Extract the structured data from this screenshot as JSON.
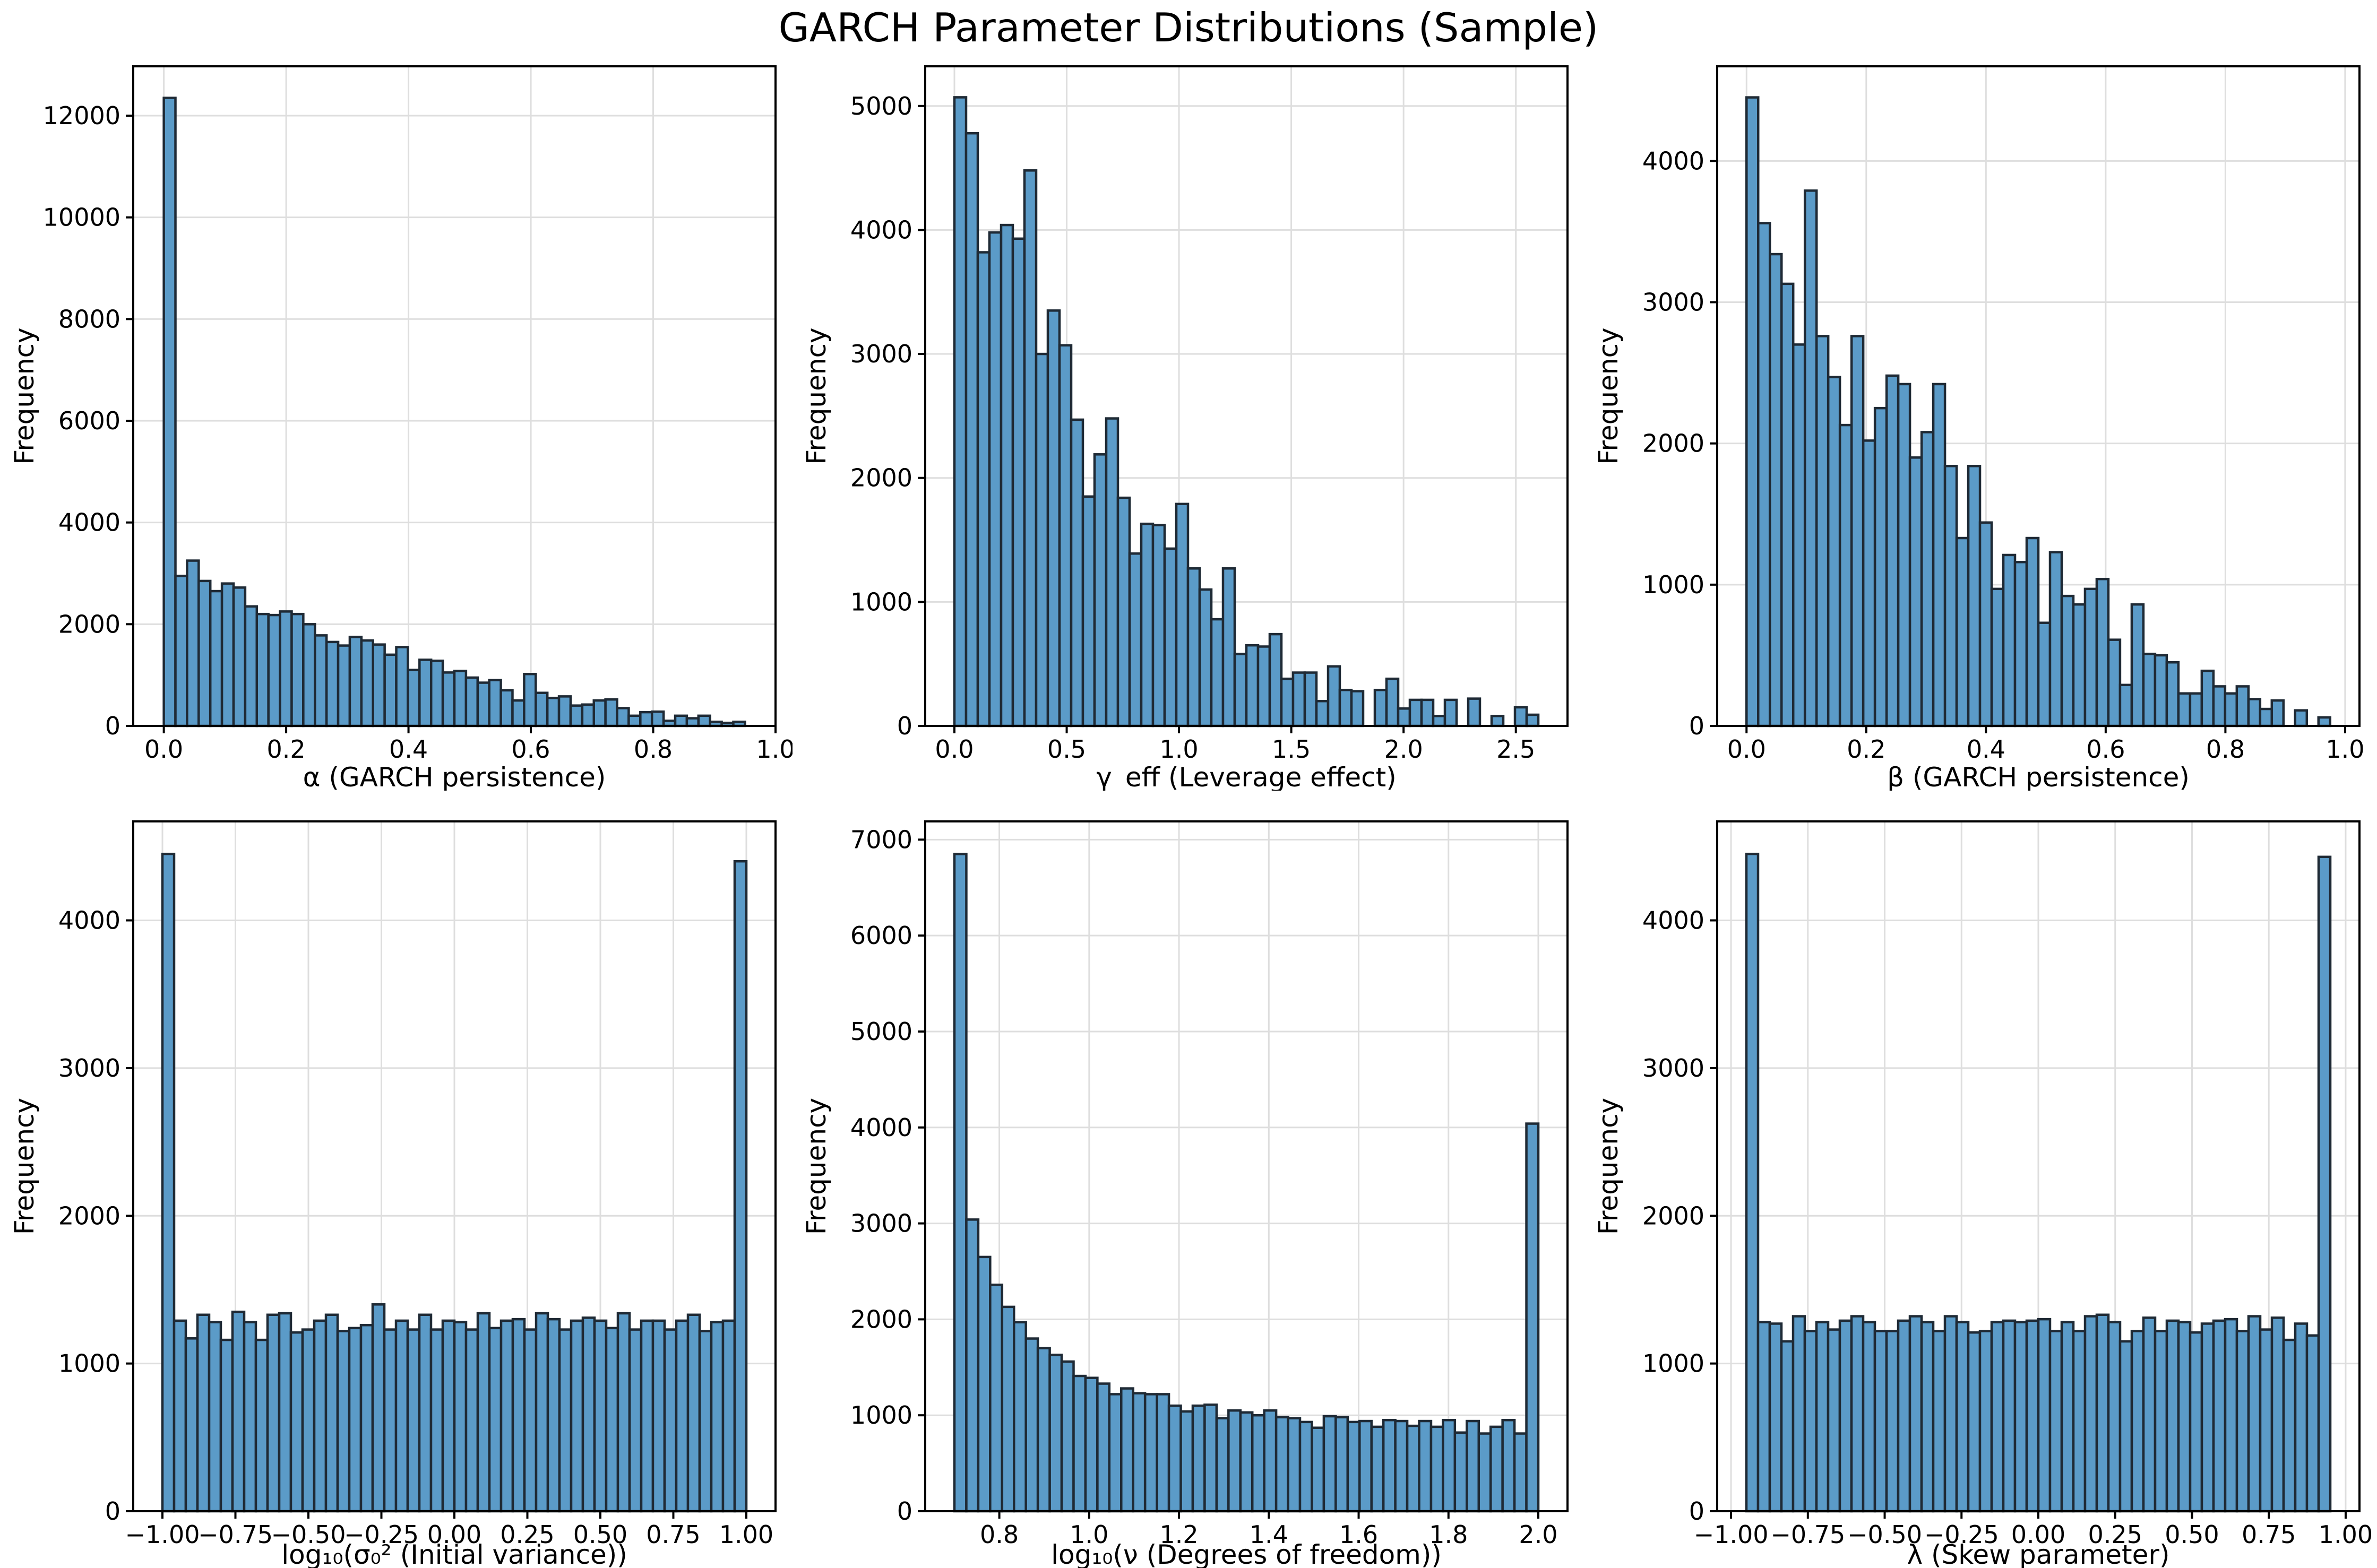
{
  "title": "GARCH Parameter Distributions (Sample)",
  "colors": {
    "background": "#ffffff",
    "bar_fill": "#5b9bc8",
    "bar_edge": "#1f2a35",
    "grid": "#dedede",
    "axis": "#000000",
    "text": "#000000"
  },
  "chart_data": [
    {
      "id": "alpha",
      "type": "bar",
      "xlabel": "α (GARCH persistence)",
      "ylabel": "Frequency",
      "bin_start": 0.0,
      "bin_end": 0.95,
      "values": [
        12350,
        2950,
        3250,
        2850,
        2650,
        2800,
        2720,
        2350,
        2200,
        2180,
        2250,
        2200,
        2000,
        1780,
        1650,
        1580,
        1750,
        1680,
        1600,
        1400,
        1550,
        1100,
        1300,
        1280,
        1050,
        1080,
        950,
        850,
        900,
        700,
        500,
        1020,
        650,
        550,
        580,
        400,
        420,
        500,
        520,
        350,
        200,
        270,
        280,
        100,
        200,
        150,
        200,
        80,
        60,
        80
      ],
      "xlim": [
        -0.05,
        1.0
      ],
      "ylim": [
        0,
        12970
      ],
      "xticks": {
        "values": [
          0.0,
          0.2,
          0.4,
          0.6,
          0.8,
          1.0
        ],
        "labels": [
          "0.0",
          "0.2",
          "0.4",
          "0.6",
          "0.8",
          "1.0"
        ]
      },
      "yticks": {
        "values": [
          0,
          2000,
          4000,
          6000,
          8000,
          10000,
          12000
        ],
        "labels": [
          "0",
          "2000",
          "4000",
          "6000",
          "8000",
          "10000",
          "12000"
        ]
      },
      "grid": true
    },
    {
      "id": "gamma_eff",
      "type": "bar",
      "xlabel": "γ_eff (Leverage effect)",
      "ylabel": "Frequency",
      "bin_start": 0.0,
      "bin_end": 2.6,
      "values": [
        5070,
        4780,
        3820,
        3980,
        4040,
        3930,
        4480,
        3000,
        3350,
        3070,
        2470,
        1850,
        2190,
        2480,
        1840,
        1390,
        1630,
        1620,
        1430,
        1790,
        1270,
        1100,
        860,
        1270,
        580,
        650,
        640,
        740,
        380,
        430,
        430,
        200,
        480,
        290,
        280,
        0,
        290,
        380,
        140,
        210,
        210,
        80,
        210,
        0,
        220,
        0,
        80,
        0,
        150,
        90
      ],
      "xlim": [
        -0.13,
        2.73
      ],
      "ylim": [
        0,
        5320
      ],
      "xticks": {
        "values": [
          0.0,
          0.5,
          1.0,
          1.5,
          2.0,
          2.5
        ],
        "labels": [
          "0.0",
          "0.5",
          "1.0",
          "1.5",
          "2.0",
          "2.5"
        ]
      },
      "yticks": {
        "values": [
          0,
          1000,
          2000,
          3000,
          4000,
          5000
        ],
        "labels": [
          "0",
          "1000",
          "2000",
          "3000",
          "4000",
          "5000"
        ]
      },
      "grid": true
    },
    {
      "id": "beta",
      "type": "bar",
      "xlabel": "β (GARCH persistence)",
      "ylabel": "Frequency",
      "bin_start": 0.0,
      "bin_end": 0.975,
      "values": [
        4450,
        3560,
        3340,
        3130,
        2700,
        3790,
        2760,
        2470,
        2130,
        2760,
        2020,
        2250,
        2480,
        2420,
        1900,
        2080,
        2420,
        1840,
        1330,
        1840,
        1440,
        970,
        1210,
        1160,
        1330,
        730,
        1230,
        920,
        860,
        970,
        1040,
        610,
        290,
        860,
        510,
        500,
        450,
        230,
        230,
        390,
        280,
        230,
        280,
        190,
        120,
        180,
        0,
        110,
        0,
        60
      ],
      "xlim": [
        -0.049,
        1.024
      ],
      "ylim": [
        0,
        4670
      ],
      "xticks": {
        "values": [
          0.0,
          0.2,
          0.4,
          0.6,
          0.8,
          1.0
        ],
        "labels": [
          "0.0",
          "0.2",
          "0.4",
          "0.6",
          "0.8",
          "1.0"
        ]
      },
      "yticks": {
        "values": [
          0,
          1000,
          2000,
          3000,
          4000
        ],
        "labels": [
          "0",
          "1000",
          "2000",
          "3000",
          "4000"
        ]
      },
      "grid": true
    },
    {
      "id": "log_sigma0_sq",
      "type": "bar",
      "xlabel": "log₁₀(σ₀² (Initial variance))",
      "ylabel": "Frequency",
      "bin_start": -1.0,
      "bin_end": 1.0,
      "values": [
        4450,
        1290,
        1170,
        1330,
        1280,
        1160,
        1350,
        1280,
        1160,
        1330,
        1340,
        1210,
        1230,
        1290,
        1330,
        1220,
        1240,
        1260,
        1400,
        1230,
        1290,
        1230,
        1330,
        1230,
        1290,
        1280,
        1230,
        1340,
        1240,
        1290,
        1300,
        1230,
        1340,
        1300,
        1230,
        1290,
        1310,
        1290,
        1240,
        1340,
        1230,
        1290,
        1290,
        1230,
        1290,
        1330,
        1220,
        1280,
        1290,
        4400
      ],
      "xlim": [
        -1.1,
        1.1
      ],
      "ylim": [
        0,
        4670
      ],
      "xticks": {
        "values": [
          -1.0,
          -0.75,
          -0.5,
          -0.25,
          0.0,
          0.25,
          0.5,
          0.75,
          1.0
        ],
        "labels": [
          "−1.00",
          "−0.75",
          "−0.50",
          "−0.25",
          "0.00",
          "0.25",
          "0.50",
          "0.75",
          "1.00"
        ]
      },
      "yticks": {
        "values": [
          0,
          1000,
          2000,
          3000,
          4000
        ],
        "labels": [
          "0",
          "1000",
          "2000",
          "3000",
          "4000"
        ]
      },
      "grid": true
    },
    {
      "id": "log_nu",
      "type": "bar",
      "xlabel": "log₁₀(ν (Degrees of freedom))",
      "ylabel": "Frequency",
      "bin_start": 0.7,
      "bin_end": 2.0,
      "values": [
        6850,
        3040,
        2650,
        2360,
        2130,
        1970,
        1800,
        1700,
        1630,
        1560,
        1410,
        1390,
        1330,
        1220,
        1280,
        1230,
        1220,
        1220,
        1100,
        1040,
        1100,
        1110,
        970,
        1050,
        1030,
        1000,
        1050,
        980,
        970,
        930,
        870,
        990,
        980,
        930,
        940,
        880,
        950,
        940,
        890,
        940,
        880,
        950,
        820,
        940,
        810,
        880,
        950,
        810,
        4040
      ],
      "xlim": [
        0.635,
        2.065
      ],
      "ylim": [
        0,
        7190
      ],
      "xticks": {
        "values": [
          0.8,
          1.0,
          1.2,
          1.4,
          1.6,
          1.8,
          2.0
        ],
        "labels": [
          "0.8",
          "1.0",
          "1.2",
          "1.4",
          "1.6",
          "1.8",
          "2.0"
        ]
      },
      "yticks": {
        "values": [
          0,
          1000,
          2000,
          3000,
          4000,
          5000,
          6000,
          7000
        ],
        "labels": [
          "0",
          "1000",
          "2000",
          "3000",
          "4000",
          "5000",
          "6000",
          "7000"
        ]
      },
      "grid": true
    },
    {
      "id": "lambda",
      "type": "bar",
      "xlabel": "λ (Skew parameter)",
      "ylabel": "Frequency",
      "bin_start": -0.95,
      "bin_end": 0.95,
      "values": [
        4450,
        1280,
        1270,
        1150,
        1320,
        1220,
        1280,
        1230,
        1290,
        1320,
        1280,
        1220,
        1220,
        1290,
        1320,
        1280,
        1220,
        1320,
        1280,
        1210,
        1220,
        1280,
        1290,
        1280,
        1290,
        1300,
        1220,
        1280,
        1220,
        1320,
        1330,
        1280,
        1150,
        1220,
        1310,
        1220,
        1290,
        1280,
        1210,
        1270,
        1290,
        1300,
        1220,
        1320,
        1230,
        1310,
        1160,
        1270,
        1190,
        4430
      ],
      "xlim": [
        -1.045,
        1.045
      ],
      "ylim": [
        0,
        4670
      ],
      "xticks": {
        "values": [
          -1.0,
          -0.75,
          -0.5,
          -0.25,
          0.0,
          0.25,
          0.5,
          0.75,
          1.0
        ],
        "labels": [
          "−1.00",
          "−0.75",
          "−0.50",
          "−0.25",
          "0.00",
          "0.25",
          "0.50",
          "0.75",
          "1.00"
        ]
      },
      "yticks": {
        "values": [
          0,
          1000,
          2000,
          3000,
          4000
        ],
        "labels": [
          "0",
          "1000",
          "2000",
          "3000",
          "4000"
        ]
      },
      "grid": true
    }
  ]
}
